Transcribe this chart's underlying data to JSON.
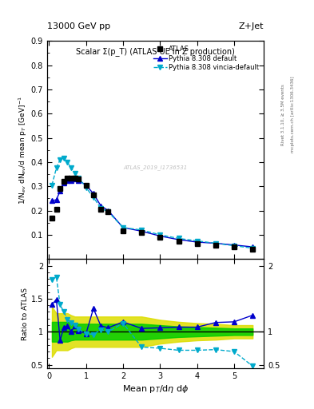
{
  "title_left": "13000 GeV pp",
  "title_right": "Z+Jet",
  "right_label1": "Rivet 3.1.10, ≥ 3.5M events",
  "right_label2": "mcplots.cern.ch [arXiv:1306.3436]",
  "plot_title": "Scalar Σ(p_T) (ATLAS UE in Z production)",
  "ylabel_main": "1/N$_{ev}$ dN$_{ev}$/d mean p$_T$ [GeV]$^{-1}$",
  "ylabel_ratio": "Ratio to ATLAS",
  "xlabel": "Mean p$_T$/d$\\eta$ d$\\phi$",
  "watermark": "ATLAS_2019_I1736531",
  "atlas_x": [
    0.08,
    0.2,
    0.3,
    0.4,
    0.5,
    0.6,
    0.7,
    0.8,
    1.0,
    1.2,
    1.4,
    1.6,
    2.0,
    2.5,
    3.0,
    3.5,
    4.0,
    4.5,
    5.0,
    5.5
  ],
  "atlas_y": [
    0.17,
    0.205,
    0.29,
    0.32,
    0.335,
    0.335,
    0.335,
    0.33,
    0.305,
    0.265,
    0.205,
    0.195,
    0.115,
    0.11,
    0.09,
    0.075,
    0.065,
    0.057,
    0.05,
    0.04
  ],
  "pythia_default_x": [
    0.08,
    0.2,
    0.3,
    0.4,
    0.5,
    0.6,
    0.7,
    0.8,
    1.0,
    1.2,
    1.4,
    1.6,
    2.0,
    2.5,
    3.0,
    3.5,
    4.0,
    4.5,
    5.0,
    5.5
  ],
  "pythia_default_y": [
    0.24,
    0.245,
    0.28,
    0.315,
    0.325,
    0.325,
    0.33,
    0.325,
    0.305,
    0.27,
    0.22,
    0.2,
    0.13,
    0.115,
    0.095,
    0.08,
    0.07,
    0.065,
    0.058,
    0.05
  ],
  "pythia_vincia_x": [
    0.08,
    0.2,
    0.3,
    0.4,
    0.5,
    0.6,
    0.7,
    0.8,
    1.0,
    1.2,
    1.4,
    1.6,
    2.0,
    2.5,
    3.0,
    3.5,
    4.0,
    4.5,
    5.0,
    5.5
  ],
  "pythia_vincia_y": [
    0.305,
    0.375,
    0.41,
    0.415,
    0.4,
    0.375,
    0.355,
    0.335,
    0.295,
    0.255,
    0.21,
    0.195,
    0.13,
    0.12,
    0.1,
    0.085,
    0.075,
    0.065,
    0.055,
    0.045
  ],
  "ratio_default_y": [
    1.41,
    1.49,
    0.87,
    1.06,
    1.09,
    1.0,
    1.09,
    1.02,
    0.97,
    1.35,
    1.09,
    1.06,
    1.15,
    1.05,
    1.06,
    1.07,
    1.07,
    1.14,
    1.15,
    1.25
  ],
  "ratio_vincia_y": [
    1.79,
    1.83,
    1.41,
    1.3,
    1.19,
    1.14,
    1.1,
    1.04,
    0.97,
    0.96,
    1.03,
    1.0,
    1.13,
    0.77,
    0.75,
    0.72,
    0.72,
    0.73,
    0.7,
    0.48
  ],
  "atlas_band_inner_lo": [
    0.85,
    0.85,
    0.85,
    0.85,
    0.85,
    0.87,
    0.88,
    0.88,
    0.88,
    0.88,
    0.88,
    0.88,
    0.88,
    0.88,
    0.9,
    0.92,
    0.93,
    0.94,
    0.95,
    0.95
  ],
  "atlas_band_inner_hi": [
    1.15,
    1.15,
    1.15,
    1.15,
    1.15,
    1.13,
    1.12,
    1.12,
    1.12,
    1.12,
    1.12,
    1.12,
    1.12,
    1.12,
    1.1,
    1.08,
    1.07,
    1.06,
    1.05,
    1.05
  ],
  "atlas_band_outer_lo": [
    0.62,
    0.72,
    0.72,
    0.72,
    0.72,
    0.75,
    0.77,
    0.77,
    0.77,
    0.77,
    0.77,
    0.77,
    0.77,
    0.77,
    0.82,
    0.85,
    0.87,
    0.88,
    0.9,
    0.9
  ],
  "atlas_band_outer_hi": [
    1.38,
    1.28,
    1.28,
    1.28,
    1.28,
    1.25,
    1.23,
    1.23,
    1.23,
    1.23,
    1.23,
    1.23,
    1.23,
    1.23,
    1.18,
    1.15,
    1.13,
    1.12,
    1.1,
    1.1
  ],
  "color_atlas": "#000000",
  "color_default": "#0000cc",
  "color_vincia": "#00aacc",
  "color_inner_band": "#00cc00",
  "color_outer_band": "#dddd00",
  "ylim_main": [
    0.0,
    0.9
  ],
  "ylim_ratio": [
    0.45,
    2.1
  ],
  "xlim": [
    -0.05,
    5.8
  ]
}
